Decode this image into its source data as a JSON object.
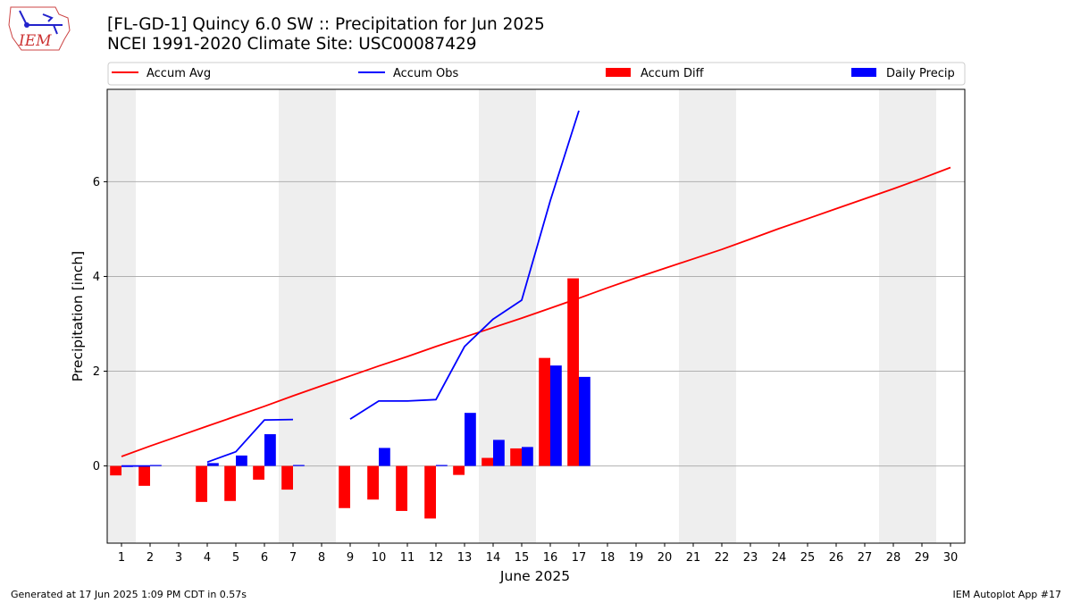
{
  "header": {
    "title_line1": "[FL-GD-1] Quincy 6.0 SW :: Precipitation for Jun 2025",
    "title_line2": "NCEI 1991-2020 Climate Site: USC00087429"
  },
  "logo": {
    "text": "IEM"
  },
  "footer": {
    "generated": "Generated at 17 Jun 2025 1:09 PM CDT in 0.57s",
    "app": "IEM Autoplot App #17"
  },
  "colors": {
    "accum_avg": "#ff0000",
    "accum_obs": "#0000ff",
    "accum_diff": "#ff0000",
    "daily_precip": "#0000ff",
    "weekend_shade": "#eeeeee",
    "grid": "#b0b0b0"
  },
  "chart_data": {
    "type": "bar",
    "xlabel": "June 2025",
    "ylabel": "Precipitation [inch]",
    "xlim": [
      0.5,
      30.5
    ],
    "ylim": [
      -1.63,
      7.95
    ],
    "yticks": [
      0,
      2,
      4,
      6
    ],
    "grid": "horizontal",
    "legend_placement": "top, above plot",
    "legend": [
      "Accum Avg",
      "Accum Obs",
      "Accum Diff",
      "Daily Precip"
    ],
    "days": [
      1,
      2,
      3,
      4,
      5,
      6,
      7,
      8,
      9,
      10,
      11,
      12,
      13,
      14,
      15,
      16,
      17,
      18,
      19,
      20,
      21,
      22,
      23,
      24,
      25,
      26,
      27,
      28,
      29,
      30
    ],
    "weekend_days": [
      1,
      7,
      8,
      14,
      15,
      21,
      22,
      28,
      29
    ],
    "series": [
      {
        "name": "Accum Avg",
        "kind": "line",
        "values": [
          0.2,
          0.42,
          0.63,
          0.84,
          1.05,
          1.26,
          1.48,
          1.69,
          1.9,
          2.11,
          2.31,
          2.52,
          2.72,
          2.92,
          3.12,
          3.33,
          3.54,
          3.76,
          3.97,
          4.17,
          4.37,
          4.57,
          4.79,
          5.01,
          5.22,
          5.43,
          5.64,
          5.85,
          6.07,
          6.3
        ]
      },
      {
        "name": "Accum Obs",
        "kind": "line",
        "values": [
          0.0,
          0.0,
          null,
          0.08,
          0.3,
          0.97,
          0.98,
          null,
          0.99,
          1.37,
          1.37,
          1.4,
          2.52,
          3.1,
          3.5,
          5.6,
          7.5,
          null,
          null,
          null,
          null,
          null,
          null,
          null,
          null,
          null,
          null,
          null,
          null,
          null
        ]
      },
      {
        "name": "Accum Diff",
        "kind": "bar",
        "values": [
          -0.2,
          -0.42,
          null,
          -0.76,
          -0.74,
          -0.29,
          -0.5,
          null,
          -0.89,
          -0.71,
          -0.95,
          -1.11,
          -0.19,
          0.17,
          0.37,
          2.28,
          3.96,
          null,
          null,
          null,
          null,
          null,
          null,
          null,
          null,
          null,
          null,
          null,
          null,
          null
        ]
      },
      {
        "name": "Daily Precip",
        "kind": "bar",
        "values": [
          0.0,
          0.02,
          null,
          0.06,
          0.22,
          0.67,
          0.02,
          null,
          null,
          0.38,
          null,
          0.02,
          1.12,
          0.55,
          0.4,
          2.12,
          1.88,
          null,
          null,
          null,
          null,
          null,
          null,
          null,
          null,
          null,
          null,
          null,
          null,
          null
        ]
      }
    ]
  }
}
